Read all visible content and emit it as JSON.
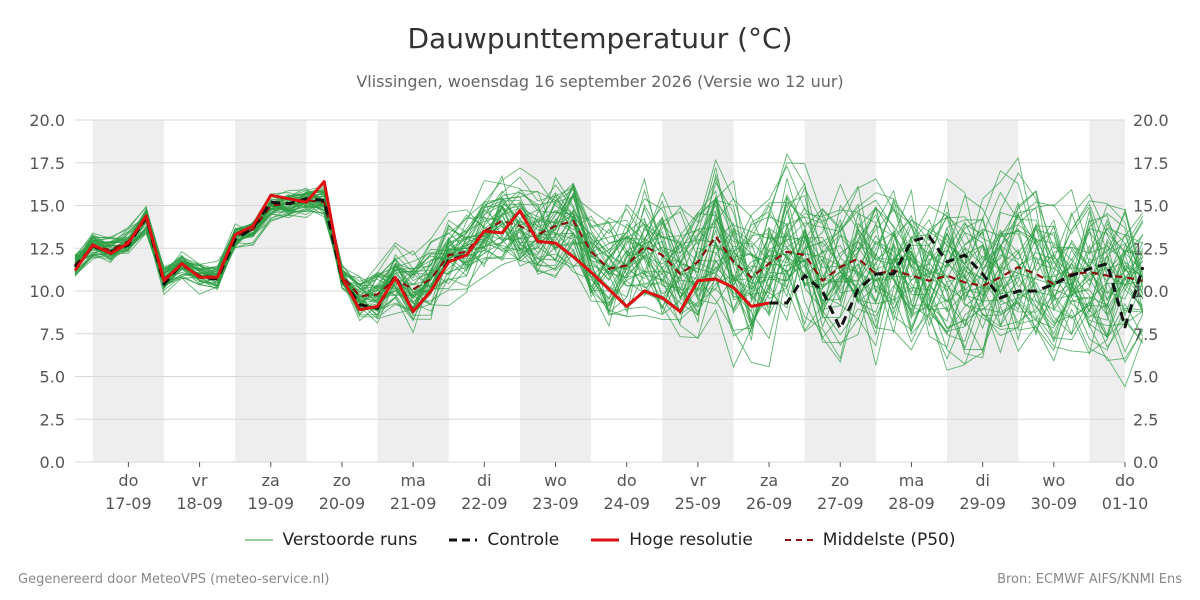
{
  "chart_data": {
    "type": "line",
    "title": "Dauwpunttemperatuur (°C)",
    "subtitle": "Vlissingen, woensdag 16 september 2026 (Versie wo 12 uur)",
    "ylim": [
      0,
      20
    ],
    "yticks": [
      "0.0",
      "2.5",
      "5.0",
      "7.5",
      "10.0",
      "12.5",
      "15.0",
      "17.5",
      "20.0"
    ],
    "xlim": [
      -0.25,
      14.5
    ],
    "day_labels": [
      {
        "day": "do",
        "date": "17-09"
      },
      {
        "day": "vr",
        "date": "18-09"
      },
      {
        "day": "za",
        "date": "19-09"
      },
      {
        "day": "zo",
        "date": "20-09"
      },
      {
        "day": "ma",
        "date": "21-09"
      },
      {
        "day": "di",
        "date": "22-09"
      },
      {
        "day": "wo",
        "date": "23-09"
      },
      {
        "day": "do",
        "date": "24-09"
      },
      {
        "day": "vr",
        "date": "25-09"
      },
      {
        "day": "za",
        "date": "26-09"
      },
      {
        "day": "zo",
        "date": "27-09"
      },
      {
        "day": "ma",
        "date": "28-09"
      },
      {
        "day": "di",
        "date": "29-09"
      },
      {
        "day": "wo",
        "date": "30-09"
      },
      {
        "day": "do",
        "date": "01-10"
      }
    ],
    "grid": true,
    "legend_position": "bottom",
    "colors": {
      "ensemble": "#2e9e44",
      "control": "#111111",
      "hires": "#dd1111",
      "median": "#8b1010",
      "weekend_band": "#eeeeee"
    },
    "series": [
      {
        "name": "Controle",
        "step": 0.25,
        "x0": -0.25,
        "values": [
          11.4,
          12.6,
          12.3,
          12.7,
          14.3,
          10.4,
          11.6,
          10.8,
          10.7,
          13.0,
          13.7,
          15.2,
          15.1,
          15.4,
          15.3,
          10.7,
          9.2,
          9.0,
          10.9,
          8.8,
          10.0,
          11.8,
          12.1,
          13.5,
          13.4,
          14.7,
          12.9,
          12.8,
          12.0,
          11.1,
          10.1,
          9.1,
          10.0,
          9.6,
          8.8,
          10.6,
          10.7,
          10.2,
          9.1,
          9.3,
          9.3,
          10.9,
          10.0,
          7.8,
          10.1,
          11.0,
          11.0,
          12.9,
          13.2,
          11.7,
          12.1,
          11.0,
          9.6,
          10.0,
          10.0,
          10.4,
          10.9,
          11.3,
          11.6,
          7.9,
          11.4
        ]
      },
      {
        "name": "Hoge resolutie",
        "step": 0.25,
        "x0": -0.25,
        "values": [
          11.2,
          12.7,
          12.2,
          12.8,
          14.4,
          10.6,
          11.6,
          10.8,
          10.8,
          13.3,
          13.8,
          15.6,
          15.4,
          15.2,
          16.4,
          10.8,
          8.9,
          9.1,
          10.8,
          8.8,
          10.0,
          11.7,
          12.1,
          13.5,
          13.4,
          14.7,
          12.9,
          12.8,
          12.0,
          11.1,
          10.1,
          9.1,
          10.0,
          9.6,
          8.8,
          10.6,
          10.7,
          10.2,
          9.1,
          9.3
        ]
      },
      {
        "name": "Middelste (P50)",
        "step": 0.25,
        "x0": -0.25,
        "values": [
          11.5,
          12.6,
          12.4,
          12.9,
          14.2,
          10.7,
          11.5,
          10.9,
          10.8,
          13.2,
          13.6,
          15.0,
          15.1,
          15.3,
          15.2,
          10.9,
          9.7,
          9.8,
          10.7,
          10.1,
          10.7,
          12.1,
          12.3,
          13.5,
          14.1,
          13.8,
          13.3,
          13.8,
          14.1,
          12.3,
          11.3,
          11.5,
          12.6,
          12.1,
          11.0,
          11.7,
          13.2,
          11.7,
          10.8,
          11.6,
          12.3,
          12.1,
          10.6,
          11.4,
          11.9,
          11.0,
          11.2,
          10.9,
          10.6,
          10.9,
          10.5,
          10.3,
          10.8,
          11.4,
          11.0,
          10.4,
          11.0,
          11.1,
          10.9,
          10.8,
          10.6
        ]
      }
    ],
    "ensemble_series_name": "Verstoorde runs",
    "ensemble_members": 50,
    "ensemble_range": {
      "min": 4.4,
      "max": 18.0
    }
  },
  "legend": {
    "ensemble": "Verstoorde runs",
    "control": "Controle",
    "hires": "Hoge resolutie",
    "median": "Middelste (P50)"
  },
  "footer": {
    "left": "Gegenereerd door MeteoVPS (meteo-service.nl)",
    "right": "Bron: ECMWF AIFS/KNMI Ens"
  }
}
